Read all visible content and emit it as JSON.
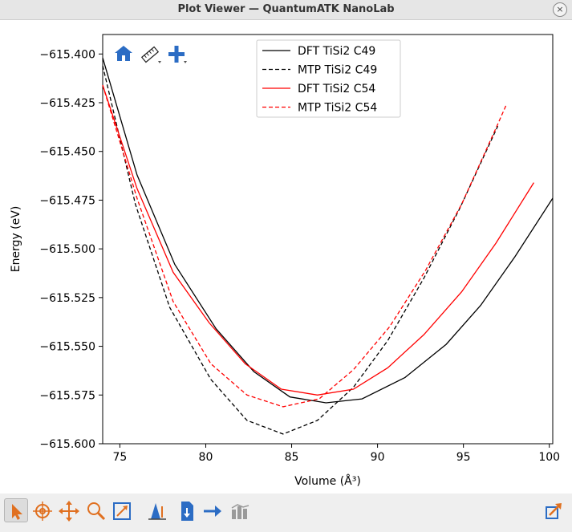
{
  "window": {
    "title": "Plot Viewer — QuantumATK NanoLab",
    "close_symbol": "×"
  },
  "plot_toolbar_icons": [
    "home-icon",
    "ruler-icon",
    "add-icon"
  ],
  "bottom_toolbar_icons": [
    "pointer-icon",
    "target-icon",
    "pan-icon",
    "zoom-icon",
    "fit-icon",
    "measure-icon",
    "import-icon",
    "arrow-icon",
    "bars-icon",
    "export-icon"
  ],
  "chart_data": {
    "type": "line",
    "xlabel": "Volume (Å³)",
    "ylabel": "Energy (eV)",
    "xlim": [
      74,
      100.2
    ],
    "ylim": [
      -615.6,
      -615.39
    ],
    "xticks": [
      75,
      80,
      85,
      90,
      95,
      100
    ],
    "yticks": [
      -615.4,
      -615.425,
      -615.45,
      -615.475,
      -615.5,
      -615.525,
      -615.55,
      -615.575,
      -615.6
    ],
    "xtick_labels": [
      "75",
      "80",
      "85",
      "90",
      "95",
      "100"
    ],
    "ytick_labels": [
      "−615.400",
      "−615.425",
      "−615.450",
      "−615.475",
      "−615.500",
      "−615.525",
      "−615.550",
      "−615.575",
      "−615.600"
    ],
    "legend_position": "top-center",
    "grid": false,
    "series": [
      {
        "name": "DFT TiSi2 C49",
        "color": "#000000",
        "dashed": false,
        "x": [
          74.0,
          76.0,
          78.2,
          80.6,
          82.8,
          84.9,
          87.0,
          89.1,
          91.6,
          94.0,
          96.0,
          98.0,
          100.2
        ],
        "y": [
          -615.402,
          -615.462,
          -615.508,
          -615.541,
          -615.563,
          -615.576,
          -615.579,
          -615.577,
          -615.566,
          -615.549,
          -615.529,
          -615.504,
          -615.474
        ]
      },
      {
        "name": "MTP TiSi2 C49",
        "color": "#000000",
        "dashed": true,
        "x": [
          74.0,
          75.9,
          77.9,
          80.3,
          82.4,
          84.5,
          86.5,
          88.6,
          90.6,
          92.7,
          94.8,
          97.0
        ],
        "y": [
          -615.406,
          -615.477,
          -615.53,
          -615.567,
          -615.588,
          -615.595,
          -615.588,
          -615.571,
          -615.547,
          -615.515,
          -615.479,
          -615.437
        ]
      },
      {
        "name": "DFT TiSi2 C54",
        "color": "#ff0000",
        "dashed": false,
        "x": [
          74.0,
          76.0,
          78.1,
          80.2,
          82.3,
          84.4,
          86.5,
          88.6,
          90.6,
          92.7,
          94.9,
          96.9,
          99.1
        ],
        "y": [
          -615.416,
          -615.469,
          -615.512,
          -615.538,
          -615.559,
          -615.572,
          -615.575,
          -615.572,
          -615.561,
          -615.544,
          -615.522,
          -615.497,
          -615.466
        ]
      },
      {
        "name": "MTP TiSi2 C54",
        "color": "#ff0000",
        "dashed": true,
        "x": [
          74.0,
          76.0,
          78.1,
          80.3,
          82.4,
          84.5,
          86.6,
          88.6,
          90.7,
          92.8,
          94.9,
          96.9,
          97.5
        ],
        "y": [
          -615.416,
          -615.474,
          -615.527,
          -615.559,
          -615.575,
          -615.581,
          -615.577,
          -615.562,
          -615.54,
          -615.511,
          -615.477,
          -615.438,
          -615.426
        ]
      }
    ]
  }
}
